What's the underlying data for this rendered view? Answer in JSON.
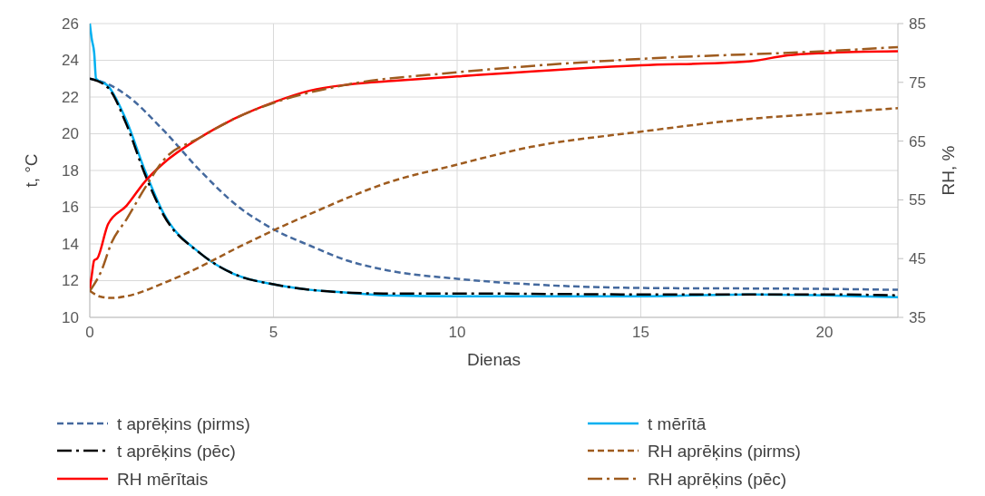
{
  "chart_data": {
    "type": "line",
    "xlabel": "Dienas",
    "ylabel": "t, °C",
    "y2label": "RH, %",
    "xlim": [
      0,
      22
    ],
    "xticks": [
      0,
      5,
      10,
      15,
      20
    ],
    "ylim": [
      10,
      26
    ],
    "yticks": [
      10,
      12,
      14,
      16,
      18,
      20,
      22,
      24,
      26
    ],
    "y2lim": [
      35,
      85
    ],
    "y2ticks": [
      35,
      45,
      55,
      65,
      75,
      85
    ],
    "grid": true,
    "legend": "bottom",
    "marker": "none",
    "series": [
      {
        "name": "t aprēķins (pirms)",
        "color": "#44699e",
        "line_style": "dashed",
        "x": [
          0,
          0.5,
          1,
          2,
          3,
          4,
          5,
          6,
          7,
          8,
          10,
          12,
          15,
          20,
          22
        ],
        "values": [
          23,
          22.7,
          22.1,
          20.2,
          18,
          16.1,
          14.8,
          13.9,
          13.1,
          12.6,
          12.1,
          11.8,
          11.6,
          11.55,
          11.5
        ]
      },
      {
        "name": "t mērītā",
        "color": "#00b0f0",
        "line_style": "solid",
        "x": [
          0,
          0.05,
          0.12,
          0.17,
          0.5,
          1,
          1.5,
          2,
          3,
          4,
          5,
          6,
          7,
          8,
          10,
          15,
          18,
          20,
          22
        ],
        "values": [
          26,
          25.2,
          24.4,
          23,
          22.6,
          20.7,
          18,
          15.7,
          13.5,
          12.3,
          11.8,
          11.5,
          11.35,
          11.2,
          11.15,
          11.15,
          11.25,
          11.2,
          11.1
        ]
      },
      {
        "name": "t aprēķins (pēc)",
        "color": "#000000",
        "line_style": "dashdot",
        "x": [
          0,
          0.5,
          1,
          1.5,
          2,
          3,
          4,
          5,
          6,
          7,
          8,
          10,
          15,
          20,
          22
        ],
        "values": [
          23,
          22.5,
          20.5,
          17.8,
          15.6,
          13.5,
          12.3,
          11.8,
          11.5,
          11.35,
          11.3,
          11.3,
          11.25,
          11.25,
          11.2
        ]
      },
      {
        "name": "RH aprēķins (pirms)",
        "color": "#9e5b1e",
        "line_style": "dashed",
        "axis": "y2",
        "x": [
          0,
          0.3,
          0.6,
          1,
          2,
          3,
          4,
          5,
          6,
          7,
          8,
          10,
          12,
          15,
          18,
          20,
          22
        ],
        "values": [
          39.5,
          38.5,
          38.3,
          38.6,
          40.8,
          43.6,
          46.8,
          49.8,
          52.6,
          55.3,
          57.7,
          61,
          64,
          66.6,
          68.8,
          69.7,
          70.6
        ]
      },
      {
        "name": "RH mērītais",
        "color": "#ff0000",
        "line_style": "solid",
        "axis": "y2",
        "x": [
          0,
          0.05,
          0.12,
          0.2,
          0.5,
          1,
          1.5,
          2,
          3,
          4,
          5,
          6,
          7,
          8.4,
          10,
          15,
          17.5,
          18,
          19,
          20,
          22
        ],
        "values": [
          39.9,
          42,
          44.7,
          45,
          50.9,
          54,
          58.1,
          61.2,
          65.6,
          69,
          71.6,
          73.6,
          74.6,
          75.3,
          76,
          77.9,
          78.4,
          78.6,
          79.6,
          80,
          80.3
        ]
      },
      {
        "name": "RH aprēķins (pēc)",
        "color": "#9e5b1e",
        "line_style": "dashdot",
        "axis": "y2",
        "x": [
          0,
          0.3,
          0.6,
          1,
          1.5,
          2,
          3,
          4,
          5,
          7,
          10,
          15,
          20,
          22
        ],
        "values": [
          39.5,
          42.7,
          47.8,
          51.7,
          57,
          61.7,
          65.6,
          69,
          71.5,
          74.6,
          76.7,
          79,
          80.3,
          81
        ]
      }
    ]
  }
}
